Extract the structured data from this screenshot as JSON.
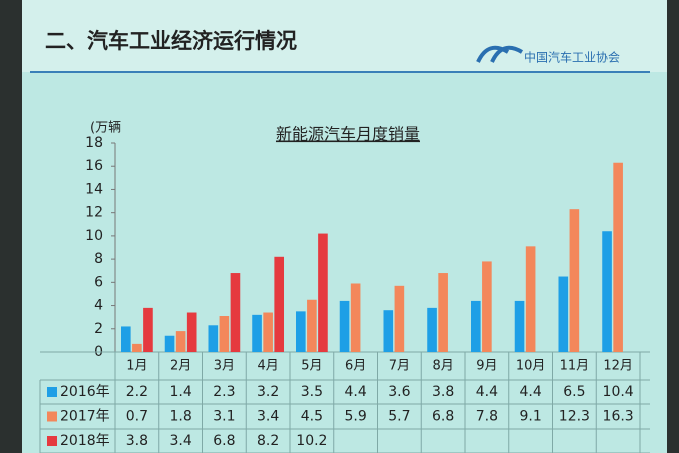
{
  "header": {
    "title": "二、汽车工业经济运行情况",
    "logo": "中国汽车工业协会"
  },
  "chart_data": {
    "type": "bar",
    "title": "新能源汽车月度销量",
    "y_label": "(万辆",
    "categories": [
      "1月",
      "2月",
      "3月",
      "4月",
      "5月",
      "6月",
      "7月",
      "8月",
      "9月",
      "10月",
      "11月",
      "12月"
    ],
    "series": [
      {
        "name": "2016年",
        "color": "#1e9fe6",
        "values": [
          2.2,
          1.4,
          2.3,
          3.2,
          3.5,
          4.4,
          3.6,
          3.8,
          4.4,
          4.4,
          6.5,
          10.4
        ]
      },
      {
        "name": "2017年",
        "color": "#f3875b",
        "values": [
          0.7,
          1.8,
          3.1,
          3.4,
          4.5,
          5.9,
          5.7,
          6.8,
          7.8,
          9.1,
          12.3,
          16.3
        ]
      },
      {
        "name": "2018年",
        "color": "#e53a3f",
        "values": [
          3.8,
          3.4,
          6.8,
          8.2,
          10.2,
          null,
          null,
          null,
          null,
          null,
          null,
          null
        ]
      }
    ],
    "ylim": [
      0,
      18
    ],
    "yticks": [
      0,
      2,
      4,
      6,
      8,
      10,
      12,
      14,
      16,
      18
    ]
  }
}
